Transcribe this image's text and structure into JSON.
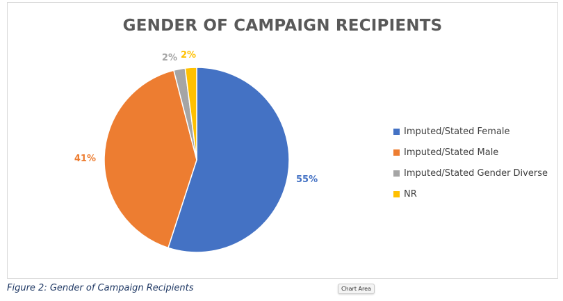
{
  "chart_data": {
    "type": "pie",
    "title": "GENDER OF CAMPAIGN RECIPIENTS",
    "legend_position": "right",
    "slices": [
      {
        "name": "Imputed/Stated Female",
        "value": 55,
        "label": "55%",
        "color": "#4472c4"
      },
      {
        "name": "Imputed/Stated Male",
        "value": 41,
        "label": "41%",
        "color": "#ed7d31"
      },
      {
        "name": "Imputed/Stated Gender Diverse",
        "value": 2,
        "label": "2%",
        "color": "#a5a5a5"
      },
      {
        "name": "NR",
        "value": 2,
        "label": "2%",
        "color": "#ffc000"
      }
    ]
  },
  "caption": "Figure 2: Gender of Campaign Recipients",
  "tooltip": "Chart Area"
}
